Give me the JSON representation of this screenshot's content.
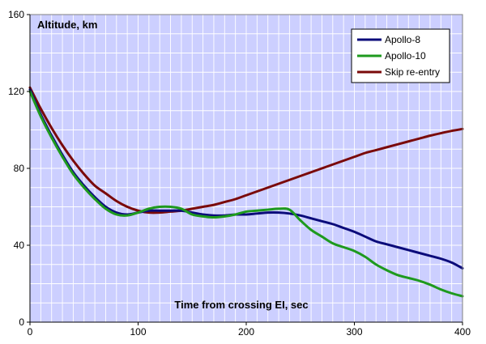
{
  "chart_data": {
    "type": "line",
    "title": "Altitude, km",
    "xlabel": "Time from crossing EI, sec",
    "ylabel": "",
    "xlim": [
      0,
      400
    ],
    "ylim": [
      0,
      160
    ],
    "x_ticks": [
      0,
      100,
      200,
      300,
      400
    ],
    "y_ticks": [
      0,
      40,
      80,
      120,
      160
    ],
    "grid": true,
    "legend_position": "top-right",
    "plot_background": "#cccfff",
    "grid_color": "#ffffff",
    "series": [
      {
        "name": "Apollo-8",
        "color": "#0b0b7a",
        "x": [
          0,
          10,
          20,
          30,
          40,
          50,
          60,
          70,
          80,
          90,
          100,
          110,
          120,
          130,
          140,
          150,
          160,
          170,
          180,
          190,
          200,
          210,
          220,
          230,
          240,
          250,
          260,
          270,
          280,
          290,
          300,
          310,
          320,
          330,
          340,
          350,
          360,
          370,
          380,
          390,
          400
        ],
        "y": [
          121,
          108,
          97,
          87,
          78,
          71,
          65,
          60,
          57,
          56,
          57,
          58,
          58,
          58,
          58,
          57,
          56,
          55.5,
          55.5,
          56,
          56,
          56.5,
          57,
          57,
          56.5,
          55.5,
          54,
          52.5,
          51,
          49,
          47,
          44.5,
          42,
          40.5,
          39,
          37.5,
          36,
          34.5,
          33,
          31,
          28
        ]
      },
      {
        "name": "Apollo-10",
        "color": "#1e9a1e",
        "x": [
          0,
          10,
          20,
          30,
          40,
          50,
          60,
          70,
          80,
          90,
          100,
          110,
          120,
          130,
          140,
          150,
          160,
          170,
          180,
          190,
          200,
          210,
          220,
          230,
          240,
          250,
          260,
          270,
          280,
          290,
          300,
          310,
          320,
          330,
          340,
          350,
          360,
          370,
          380,
          390,
          400
        ],
        "y": [
          120,
          107,
          96,
          86,
          77,
          70,
          64,
          59,
          56,
          55.5,
          57,
          59,
          60,
          60,
          59,
          56,
          55,
          54.5,
          55,
          56,
          57.5,
          58,
          58.5,
          59,
          58.5,
          53,
          48,
          44.5,
          41,
          39,
          37,
          34,
          30,
          27,
          24.5,
          23,
          21.5,
          19.5,
          17,
          15,
          13.5
        ]
      },
      {
        "name": "Skip re-entry",
        "color": "#7a0a0a",
        "x": [
          0,
          10,
          20,
          30,
          40,
          50,
          60,
          70,
          80,
          90,
          100,
          110,
          120,
          130,
          140,
          150,
          160,
          170,
          180,
          190,
          200,
          210,
          220,
          230,
          240,
          250,
          260,
          270,
          280,
          290,
          300,
          310,
          320,
          330,
          340,
          350,
          360,
          370,
          380,
          390,
          400
        ],
        "y": [
          122,
          111,
          101,
          92,
          84,
          77,
          71,
          67,
          63,
          60,
          58,
          57,
          57,
          57.5,
          58,
          59,
          60,
          61,
          62.5,
          64,
          66,
          68,
          70,
          72,
          74,
          76,
          78,
          80,
          82,
          84,
          86,
          88,
          89.5,
          91,
          92.5,
          94,
          95.5,
          97,
          98.3,
          99.5,
          100.5
        ]
      }
    ]
  }
}
